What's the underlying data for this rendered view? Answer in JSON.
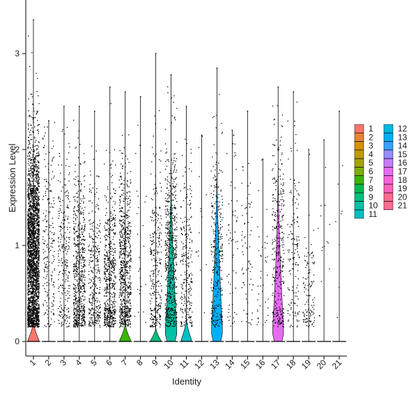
{
  "chart_data": {
    "type": "violin",
    "xlabel": "Identity",
    "ylabel": "Expression Level",
    "ylim": [
      -0.15,
      3.45
    ],
    "yticks": [
      0,
      1,
      2,
      3
    ],
    "grid": false,
    "legend_position": "right",
    "legend_columns": 2,
    "categories": [
      "1",
      "2",
      "3",
      "4",
      "5",
      "6",
      "7",
      "8",
      "9",
      "10",
      "11",
      "12",
      "13",
      "14",
      "15",
      "16",
      "17",
      "18",
      "19",
      "20",
      "21"
    ],
    "colors": [
      "#F8766D",
      "#EA8331",
      "#D89000",
      "#C09B00",
      "#A3A500",
      "#7CAE00",
      "#39B600",
      "#00BB4E",
      "#00BF7D",
      "#00C1A3",
      "#00BFC4",
      "#00BAE0",
      "#00B0F6",
      "#35A2FF",
      "#9590FF",
      "#C77CFF",
      "#E76BF3",
      "#FA62DB",
      "#FF62BC",
      "#FF6C91",
      "#FF6C91"
    ],
    "series": [
      {
        "name": "1",
        "max": 3.35,
        "points": 2600,
        "median": 0.9,
        "spread": 0.6,
        "violin_width": 0.9,
        "violin_height": 0.22
      },
      {
        "name": "2",
        "max": 2.3,
        "points": 220,
        "median": 1.0,
        "spread": 0.55,
        "violin_width": 0.0,
        "violin_height": 0.0
      },
      {
        "name": "3",
        "max": 2.45,
        "points": 260,
        "median": 0.9,
        "spread": 0.55,
        "violin_width": 0.0,
        "violin_height": 0.0
      },
      {
        "name": "4",
        "max": 2.45,
        "points": 650,
        "median": 0.7,
        "spread": 0.55,
        "violin_width": 0.0,
        "violin_height": 0.0
      },
      {
        "name": "5",
        "max": 2.4,
        "points": 330,
        "median": 0.6,
        "spread": 0.5,
        "violin_width": 0.0,
        "violin_height": 0.0
      },
      {
        "name": "6",
        "max": 2.65,
        "points": 580,
        "median": 0.6,
        "spread": 0.5,
        "violin_width": 0.0,
        "violin_height": 0.0
      },
      {
        "name": "7",
        "max": 2.6,
        "points": 720,
        "median": 0.75,
        "spread": 0.5,
        "violin_width": 0.9,
        "violin_height": 0.2
      },
      {
        "name": "8",
        "max": 2.55,
        "points": 25,
        "median": 1.2,
        "spread": 0.7,
        "violin_width": 0.0,
        "violin_height": 0.0
      },
      {
        "name": "9",
        "max": 3.0,
        "points": 300,
        "median": 0.7,
        "spread": 0.6,
        "violin_width": 0.85,
        "violin_height": 0.15
      },
      {
        "name": "10",
        "max": 2.78,
        "points": 620,
        "median": 0.85,
        "spread": 0.6,
        "violin_width": 0.95,
        "violin_height": 1.75
      },
      {
        "name": "11",
        "max": 2.45,
        "points": 260,
        "median": 0.8,
        "spread": 0.55,
        "violin_width": 0.85,
        "violin_height": 0.25
      },
      {
        "name": "12",
        "max": 2.15,
        "points": 15,
        "median": 1.1,
        "spread": 0.6,
        "violin_width": 0.0,
        "violin_height": 0.0
      },
      {
        "name": "13",
        "max": 2.85,
        "points": 330,
        "median": 0.9,
        "spread": 0.6,
        "violin_width": 0.9,
        "violin_height": 1.85
      },
      {
        "name": "14",
        "max": 2.2,
        "points": 60,
        "median": 0.9,
        "spread": 0.6,
        "violin_width": 0.0,
        "violin_height": 0.0
      },
      {
        "name": "15",
        "max": 2.4,
        "points": 70,
        "median": 0.9,
        "spread": 0.6,
        "violin_width": 0.0,
        "violin_height": 0.0
      },
      {
        "name": "16",
        "max": 1.9,
        "points": 40,
        "median": 0.6,
        "spread": 0.5,
        "violin_width": 0.0,
        "violin_height": 0.0
      },
      {
        "name": "17",
        "max": 2.65,
        "points": 330,
        "median": 0.9,
        "spread": 0.6,
        "violin_width": 0.9,
        "violin_height": 1.78
      },
      {
        "name": "18",
        "max": 2.6,
        "points": 150,
        "median": 0.8,
        "spread": 0.6,
        "violin_width": 0.0,
        "violin_height": 0.0
      },
      {
        "name": "19",
        "max": 2.0,
        "points": 120,
        "median": 0.45,
        "spread": 0.35,
        "violin_width": 0.0,
        "violin_height": 0.0
      },
      {
        "name": "20",
        "max": 2.1,
        "points": 15,
        "median": 1.0,
        "spread": 0.6,
        "violin_width": 0.0,
        "violin_height": 0.0
      },
      {
        "name": "21",
        "max": 2.4,
        "points": 8,
        "median": 1.0,
        "spread": 0.6,
        "violin_width": 0.0,
        "violin_height": 0.0
      }
    ]
  }
}
